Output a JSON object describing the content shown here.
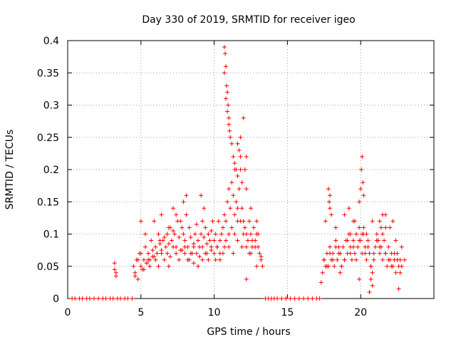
{
  "chart_data": {
    "type": "scatter",
    "title": "Day 330 of 2019, SRMTID for receiver igeo",
    "xlabel": "GPS time / hours",
    "ylabel": "SRMTID / TECUs",
    "xlim": [
      0,
      25
    ],
    "ylim": [
      0,
      0.4
    ],
    "xticks": [
      0,
      5,
      10,
      15,
      20
    ],
    "yticks": [
      0,
      0.05,
      0.1,
      0.15,
      0.2,
      0.25,
      0.3,
      0.35,
      0.4
    ],
    "xtick_labels": [
      "0",
      "5",
      "10",
      "15",
      "20"
    ],
    "ytick_labels": [
      "0",
      "0.05",
      "0.1",
      "0.15",
      "0.2",
      "0.25",
      "0.3",
      "0.35",
      "0.4"
    ],
    "grid": true,
    "marker": "+",
    "color": "#ff0000",
    "series": [
      {
        "name": "SRMTID",
        "x": [
          0.3,
          0.5,
          0.8,
          1.0,
          1.3,
          1.5,
          1.8,
          2.1,
          2.4,
          2.6,
          2.9,
          3.1,
          3.4,
          3.6,
          3.9,
          4.1,
          4.4,
          3.2,
          3.2,
          3.3,
          3.3,
          4.5,
          4.6,
          4.7,
          4.8,
          4.9,
          5.0,
          5.1,
          5.2,
          5.3,
          5.4,
          5.5,
          5.6,
          5.7,
          5.8,
          5.9,
          6.0,
          6.1,
          6.2,
          6.3,
          6.4,
          6.5,
          6.6,
          6.7,
          6.8,
          6.9,
          7.0,
          7.1,
          7.2,
          7.3,
          7.4,
          7.5,
          7.6,
          7.7,
          7.8,
          7.9,
          8.0,
          8.1,
          8.2,
          8.3,
          8.4,
          8.5,
          8.6,
          8.7,
          8.8,
          8.9,
          9.0,
          9.1,
          9.2,
          9.3,
          9.4,
          9.5,
          9.6,
          9.7,
          9.8,
          9.9,
          4.6,
          4.8,
          5.0,
          5.2,
          5.4,
          5.6,
          5.8,
          6.0,
          6.2,
          6.4,
          6.6,
          6.8,
          7.0,
          7.2,
          7.4,
          7.6,
          7.8,
          8.0,
          8.2,
          8.4,
          8.6,
          8.8,
          9.0,
          9.2,
          9.4,
          9.6,
          9.8,
          5.0,
          5.3,
          5.9,
          6.4,
          6.9,
          7.2,
          7.9,
          8.1,
          9.1,
          9.3,
          10.0,
          10.1,
          10.2,
          10.3,
          10.4,
          10.5,
          10.6,
          10.7,
          10.8,
          10.9,
          11.0,
          11.1,
          11.2,
          11.3,
          11.4,
          11.5,
          11.6,
          11.7,
          11.8,
          11.9,
          12.0,
          12.1,
          12.2,
          12.3,
          12.4,
          12.5,
          12.6,
          12.7,
          12.8,
          12.9,
          13.0,
          13.1,
          13.2,
          13.3,
          10.0,
          10.2,
          10.4,
          10.6,
          10.8,
          11.0,
          11.2,
          11.4,
          11.6,
          11.8,
          12.0,
          12.2,
          12.4,
          12.6,
          12.8,
          13.0,
          13.2,
          10.7,
          10.75,
          10.8,
          10.85,
          10.9,
          10.95,
          11.0,
          11.05,
          11.1,
          11.2,
          11.3,
          11.4,
          11.5,
          11.6,
          11.7,
          11.8,
          11.9,
          12.0,
          12.1,
          12.2,
          10.7,
          10.8,
          10.9,
          11.0,
          11.4,
          11.6,
          11.8,
          12.2,
          12.5,
          12.9,
          5.5,
          6.3,
          6.9,
          7.4,
          7.7,
          8.0,
          8.3,
          8.6,
          8.9,
          9.2,
          9.5,
          9.8,
          10.1,
          10.4,
          10.7,
          11.0,
          11.3,
          11.6,
          11.9,
          12.2,
          12.5,
          12.9,
          13.5,
          13.7,
          13.9,
          14.1,
          14.3,
          14.6,
          14.9,
          15.2,
          15.5,
          15.8,
          16.1,
          16.4,
          16.7,
          17.0,
          17.2,
          17.4,
          17.5,
          17.6,
          17.7,
          17.8,
          17.9,
          18.0,
          18.1,
          18.2,
          18.3,
          18.4,
          18.5,
          18.6,
          18.7,
          18.8,
          18.9,
          19.0,
          19.1,
          19.2,
          19.3,
          19.4,
          19.5,
          19.6,
          19.7,
          19.8,
          19.9,
          20.0,
          20.1,
          20.2,
          20.3,
          20.4,
          20.5,
          20.6,
          20.7,
          20.8,
          20.9,
          21.0,
          21.1,
          21.2,
          21.3,
          21.4,
          21.5,
          21.6,
          21.7,
          21.8,
          21.9,
          22.0,
          22.1,
          22.2,
          22.3,
          22.4,
          22.5,
          22.6,
          22.7,
          22.8,
          17.5,
          17.7,
          17.9,
          18.1,
          18.3,
          18.5,
          18.7,
          18.9,
          19.1,
          19.3,
          19.5,
          19.7,
          19.9,
          20.1,
          20.3,
          20.5,
          20.7,
          20.9,
          21.1,
          21.3,
          21.5,
          21.7,
          21.9,
          22.1,
          22.3,
          22.5,
          22.7,
          17.8,
          17.85,
          17.9,
          18.0,
          19.2,
          19.5,
          19.9,
          20.0,
          20.05,
          20.1,
          20.15,
          20.2,
          21.3,
          21.5,
          21.7,
          22.2,
          20.6,
          20.7,
          20.8,
          22.6,
          17.3,
          17.6,
          17.9,
          18.3,
          18.6,
          18.9,
          19.3,
          19.6,
          19.9,
          20.2,
          20.4,
          20.8,
          21.1,
          21.4,
          21.7,
          22.0,
          22.4,
          22.8,
          23.0
        ],
        "y": [
          0,
          0,
          0,
          0,
          0,
          0,
          0,
          0,
          0,
          0,
          0,
          0,
          0,
          0,
          0,
          0,
          0,
          0.045,
          0.055,
          0.04,
          0.035,
          0.05,
          0.04,
          0.06,
          0.03,
          0.07,
          0.05,
          0.045,
          0.06,
          0.08,
          0.055,
          0.07,
          0.06,
          0.09,
          0.075,
          0.065,
          0.08,
          0.07,
          0.1,
          0.085,
          0.07,
          0.09,
          0.095,
          0.08,
          0.1,
          0.085,
          0.11,
          0.09,
          0.105,
          0.1,
          0.08,
          0.12,
          0.095,
          0.075,
          0.11,
          0.1,
          0.09,
          0.13,
          0.08,
          0.11,
          0.095,
          0.07,
          0.085,
          0.1,
          0.115,
          0.09,
          0.08,
          0.1,
          0.12,
          0.095,
          0.11,
          0.085,
          0.1,
          0.09,
          0.105,
          0.12,
          0.035,
          0.06,
          0.07,
          0.045,
          0.055,
          0.05,
          0.065,
          0.06,
          0.05,
          0.075,
          0.06,
          0.07,
          0.065,
          0.08,
          0.07,
          0.06,
          0.075,
          0.08,
          0.06,
          0.07,
          0.055,
          0.07,
          0.065,
          0.08,
          0.07,
          0.06,
          0.075,
          0.12,
          0.1,
          0.12,
          0.13,
          0.11,
          0.14,
          0.15,
          0.16,
          0.16,
          0.14,
          0.09,
          0.1,
          0.08,
          0.12,
          0.07,
          0.1,
          0.11,
          0.13,
          0.12,
          0.15,
          0.17,
          0.14,
          0.18,
          0.16,
          0.13,
          0.15,
          0.12,
          0.17,
          0.2,
          0.14,
          0.12,
          0.11,
          0.1,
          0.09,
          0.12,
          0.1,
          0.08,
          0.11,
          0.09,
          0.1,
          0.08,
          0.07,
          0.06,
          0.05,
          0.07,
          0.08,
          0.06,
          0.07,
          0.09,
          0.08,
          0.11,
          0.1,
          0.14,
          0.12,
          0.1,
          0.08,
          0.07,
          0.09,
          0.08,
          0.1,
          0.065,
          0.39,
          0.38,
          0.36,
          0.33,
          0.32,
          0.3,
          0.27,
          0.26,
          0.25,
          0.24,
          0.22,
          0.21,
          0.2,
          0.19,
          0.23,
          0.22,
          0.18,
          0.28,
          0.2,
          0.22,
          0.35,
          0.31,
          0.29,
          0.28,
          0.2,
          0.24,
          0.25,
          0.17,
          0.14,
          0.12,
          0.06,
          0.09,
          0.05,
          0.13,
          0.12,
          0.07,
          0.06,
          0.08,
          0.05,
          0.06,
          0.07,
          0.08,
          0.06,
          0.09,
          0.08,
          0.1,
          0.07,
          0.09,
          0.08,
          0.03,
          0.07,
          0.05,
          0,
          0,
          0,
          0,
          0,
          0,
          0,
          0,
          0,
          0,
          0,
          0,
          0,
          0,
          0,
          0.04,
          0.06,
          0.05,
          0.07,
          0.05,
          0.08,
          0.06,
          0.07,
          0.05,
          0.09,
          0.06,
          0.08,
          0.07,
          0.05,
          0.08,
          0.06,
          0.09,
          0.07,
          0.1,
          0.08,
          0.06,
          0.09,
          0.07,
          0.1,
          0.08,
          0.11,
          0.09,
          0.07,
          0.1,
          0.08,
          0.06,
          0.09,
          0.07,
          0.05,
          0.04,
          0.06,
          0.08,
          0.1,
          0.09,
          0.07,
          0.08,
          0.06,
          0.09,
          0.07,
          0.05,
          0.08,
          0.06,
          0.07,
          0.05,
          0.06,
          0.04,
          0.07,
          0.05,
          0.06,
          0.05,
          0.06,
          0.05,
          0.07,
          0.06,
          0.08,
          0.07,
          0.05,
          0.06,
          0.09,
          0.07,
          0.08,
          0.06,
          0.09,
          0.1,
          0.07,
          0.08,
          0.05,
          0.07,
          0.09,
          0.08,
          0.1,
          0.07,
          0.06,
          0.05,
          0.07,
          0.06,
          0.04,
          0.17,
          0.15,
          0.16,
          0.13,
          0.14,
          0.12,
          0.15,
          0.17,
          0.2,
          0.22,
          0.18,
          0.16,
          0.12,
          0.13,
          0.11,
          0.12,
          0.01,
          0.03,
          0.02,
          0.015,
          0.025,
          0.12,
          0.14,
          0.11,
          0.04,
          0.13,
          0.1,
          0.12,
          0.03,
          0.11,
          0.1,
          0.12,
          0.09,
          0.11,
          0.13,
          0.11,
          0.09,
          0.08,
          0.06
        ]
      }
    ]
  }
}
